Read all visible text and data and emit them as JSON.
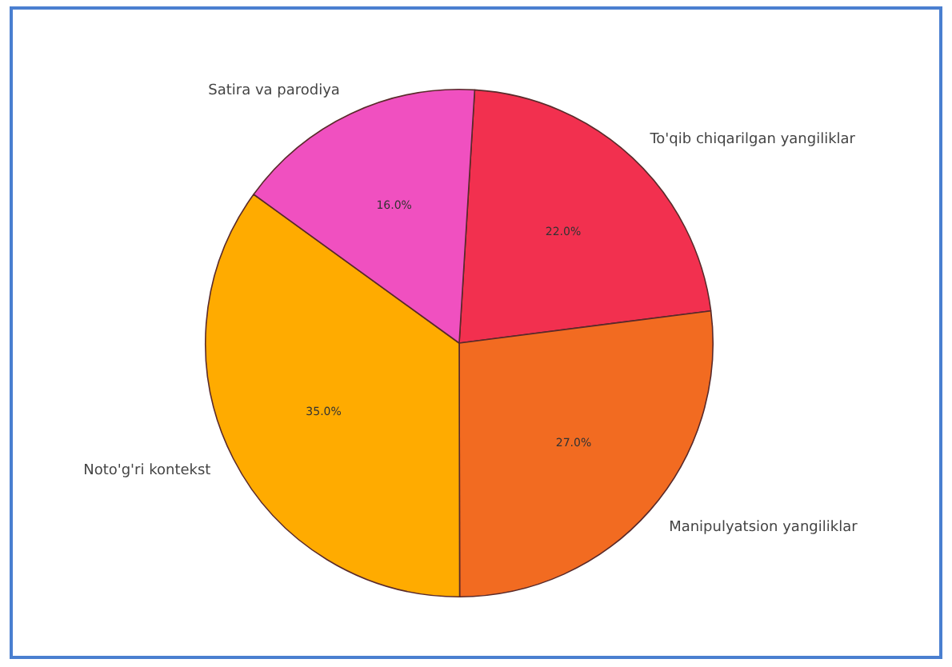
{
  "chart_data": {
    "type": "pie",
    "categories": [
      "To'qib chiqarilgan yangiliklar",
      "Manipulyatsion yangiliklar",
      "Noto'g'ri kontekst",
      "Satira va parodiya"
    ],
    "values": [
      22,
      27,
      35,
      16
    ],
    "colors": [
      "#f2304f",
      "#f26b21",
      "#ffab00",
      "#f050c0"
    ],
    "value_labels": [
      "22.0%",
      "27.0%",
      "35.0%",
      "16.0%"
    ],
    "legend": false
  }
}
